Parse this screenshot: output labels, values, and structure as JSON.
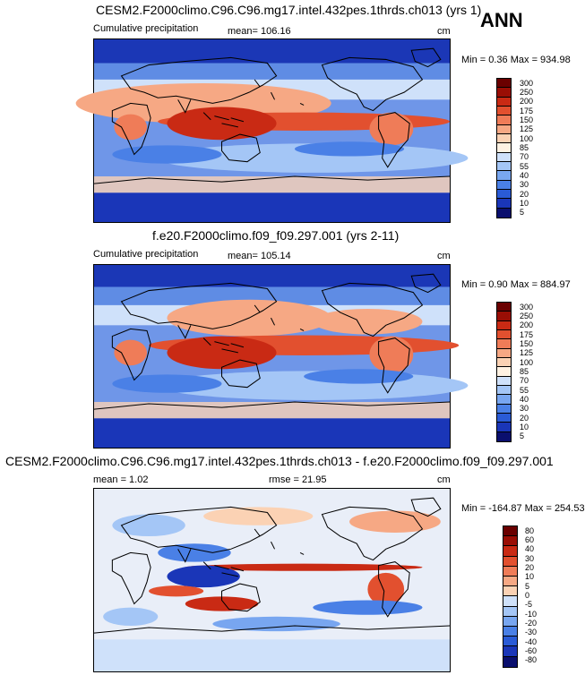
{
  "season": "ANN",
  "colors": {
    "prect": [
      "#0a0f6e",
      "#1a36b8",
      "#2a5bd6",
      "#4a80e6",
      "#78a6f0",
      "#a4c6f6",
      "#cfe1fa",
      "#fff2e2",
      "#fbd2b4",
      "#f6a884",
      "#ef7c58",
      "#e2502f",
      "#c92a14",
      "#9a0e05",
      "#6a0000"
    ],
    "diff": [
      "#0a0f6e",
      "#1a36b8",
      "#2a5bd6",
      "#4a80e6",
      "#78a6f0",
      "#a4c6f6",
      "#cfe1fa",
      "#fbd2b4",
      "#f6a884",
      "#ef7c58",
      "#e2502f",
      "#c92a14",
      "#9a0e05",
      "#6a0000"
    ],
    "land": "#000000"
  },
  "panels": {
    "test": {
      "title": "CESM2.F2000climo.C96.C96.mg17.intel.432pes.1thrds.ch013 (yrs 1)",
      "variable": "Cumulative precipitation",
      "mean": "mean= 106.16",
      "units": "cm",
      "minmax": "Min =   0.36 Max = 934.98",
      "levels": [
        "300",
        "250",
        "200",
        "175",
        "150",
        "125",
        "100",
        "85",
        "70",
        "55",
        "40",
        "30",
        "20",
        "10",
        "5"
      ]
    },
    "ref": {
      "title": "f.e20.F2000climo.f09_f09.297.001 (yrs 2-11)",
      "variable": "Cumulative precipitation",
      "mean": "mean= 105.14",
      "units": "cm",
      "minmax": "Min =   0.90 Max = 884.97",
      "levels": [
        "300",
        "250",
        "200",
        "175",
        "150",
        "125",
        "100",
        "85",
        "70",
        "55",
        "40",
        "30",
        "20",
        "10",
        "5"
      ]
    },
    "diff": {
      "title": "CESM2.F2000climo.C96.C96.mg17.intel.432pes.1thrds.ch013 - f.e20.F2000climo.f09_f09.297.001",
      "mean": "mean =    1.02",
      "rmse": "rmse =  21.95",
      "units": "cm",
      "minmax": "Min = -164.87 Max = 254.53",
      "levels": [
        "80",
        "60",
        "40",
        "30",
        "20",
        "10",
        "5",
        "0",
        "-5",
        "-10",
        "-20",
        "-30",
        "-40",
        "-60",
        "-80"
      ]
    }
  }
}
